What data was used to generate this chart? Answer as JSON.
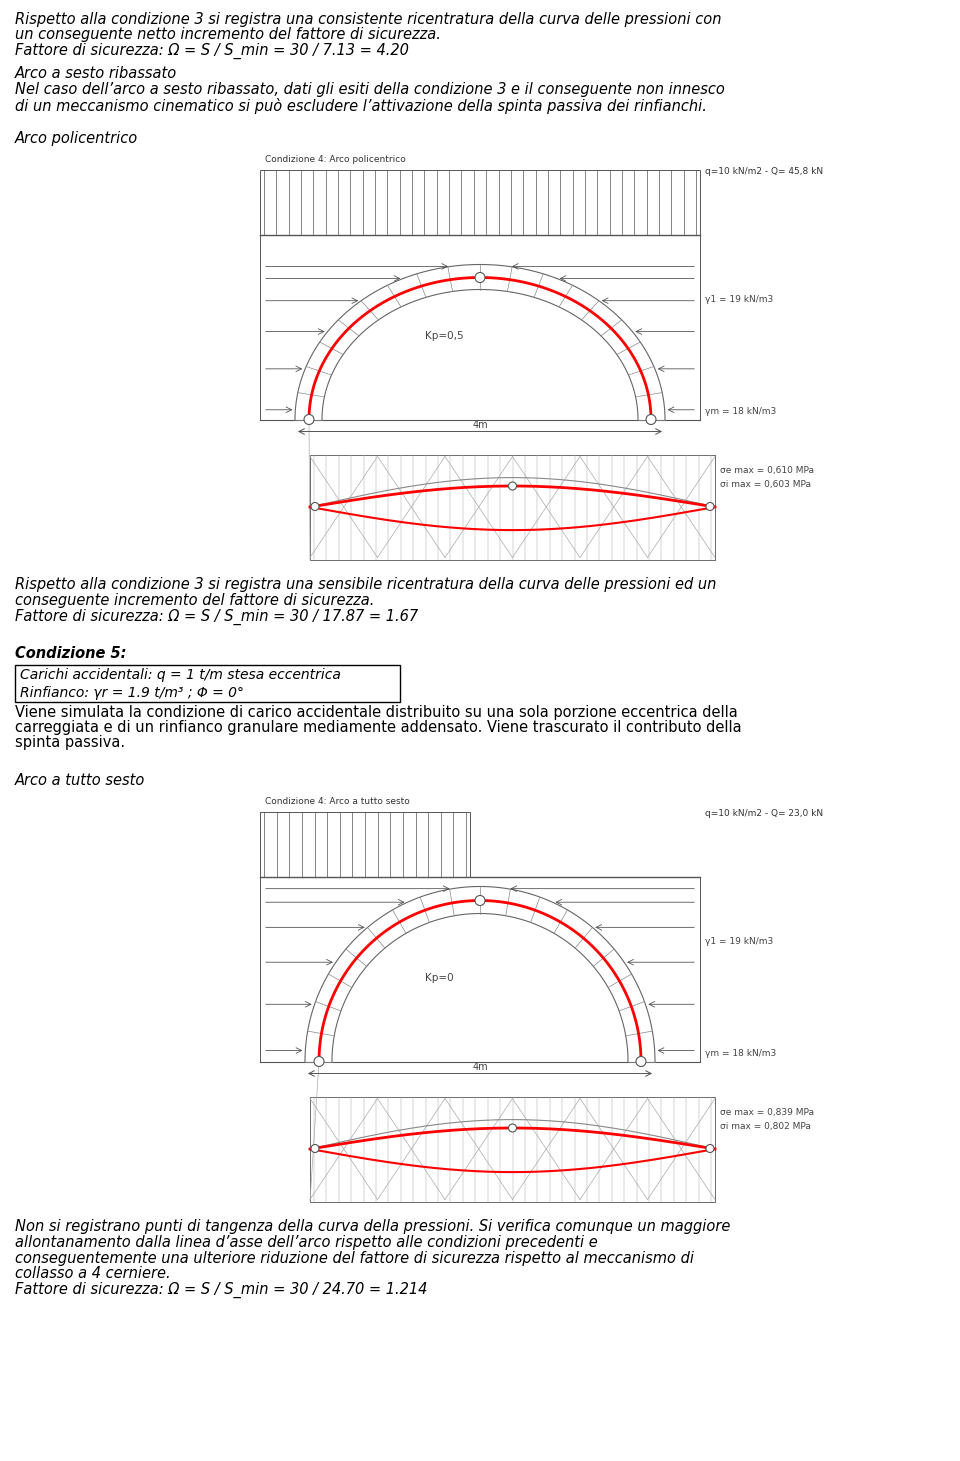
{
  "bg_color": "#ffffff",
  "text_color": "#000000",
  "para1_lines": [
    "Rispetto alla condizione 3 si registra una consistente ricentratura della curva delle pressioni con",
    "un conseguente netto incremento del fattore di sicurezza.",
    "Fattore di sicurezza: Ω = S / S_min = 30 / 7.13 = 4.20"
  ],
  "heading2": "Arco a sesto ribassato",
  "para2_lines": [
    "Nel caso dell’arco a sesto ribassato, dati gli esiti della condizione 3 e il conseguente non innesco",
    "di un meccanismo cinematico si può escludere l’attivazione della spinta passiva dei rinfianchi."
  ],
  "heading3": "Arco policentrico",
  "image1_title": "Condizione 4: Arco policentrico",
  "image1_label_top": "q=10 kN/m2 - Q= 45,8 kN",
  "image1_label_kp": "Kp=0,5",
  "image1_label_4m": "4m",
  "image1_label_y1": "γ1 = 19 kN/m3",
  "image1_label_ym": "γm = 18 kN/m3",
  "image1_label_sigma1": "σe max = 0,610 MPa",
  "image1_label_sigma2": "σi max = 0,603 MPa",
  "para3_lines": [
    "Rispetto alla condizione 3 si registra una sensibile ricentratura della curva delle pressioni ed un",
    "conseguente incremento del fattore di sicurezza."
  ],
  "para3_line3": "Fattore di sicurezza: Ω = S / S_min = 30 / 17.87 = 1.67",
  "heading4_bold": "Condizione 5:",
  "box_line1": "Carichi accidentali: q = 1 t/m stesa eccentrica",
  "box_line2": "Rinfianco: γr = 1.9 t/m³ ; Φ = 0°",
  "para4_lines": [
    "Viene simulata la condizione di carico accidentale distribuito su una sola porzione eccentrica della",
    "carreggiata e di un rinfianco granulare mediamente addensato. Viene trascurato il contributo della",
    "spinta passiva."
  ],
  "heading5": "Arco a tutto sesto",
  "image2_title": "Condizione 4: Arco a tutto sesto",
  "image2_label_top": "q=10 kN/m2 - Q= 23,0 kN",
  "image2_label_kp": "Kp=0",
  "image2_label_4m": "4m",
  "image2_label_y1": "γ1 = 19 kN/m3",
  "image2_label_ym": "γm = 18 kN/m3",
  "image2_label_sigma1": "σe max = 0,839 MPa",
  "image2_label_sigma2": "σi max = 0,802 MPa",
  "para5_lines": [
    "Non si registrano punti di tangenza della curva della pressioni. Si verifica comunque un maggiore",
    "allontanamento dalla linea d’asse dell’arco rispetto alle condizioni precedenti e",
    "conseguentemente una ulteriore riduzione del fattore di sicurezza rispetto al meccanismo di",
    "collasso a 4 cerniere."
  ],
  "para5_line5": "Fattore di sicurezza: Ω = S / S_min = 30 / 24.70 = 1.214"
}
